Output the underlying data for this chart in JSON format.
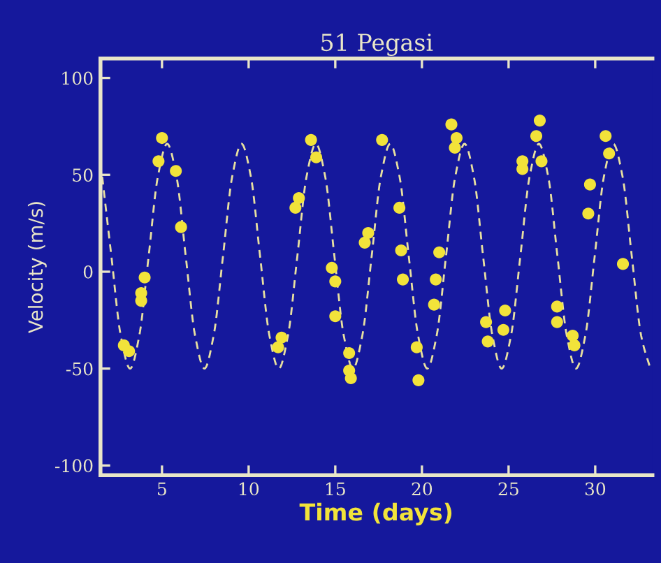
{
  "chart_data": {
    "type": "scatter",
    "title": "51 Pegasi",
    "xlabel": "Time (days)",
    "ylabel": "Velocity (m/s)",
    "xlim": [
      1.45,
      33.3
    ],
    "ylim": [
      -105,
      110
    ],
    "xticks": [
      5,
      10,
      15,
      20,
      25,
      30
    ],
    "yticks": [
      -100,
      -50,
      0,
      50,
      100
    ],
    "grid": false,
    "legend": false,
    "series": [
      {
        "color": "#f2e33a",
        "marker": "circle",
        "x": [
          2.8,
          3.1,
          3.8,
          3.8,
          4.0,
          4.8,
          5.0,
          5.8,
          6.1,
          11.7,
          11.9,
          12.7,
          12.9,
          13.6,
          13.9,
          14.8,
          15.0,
          15.0,
          15.8,
          15.8,
          15.9,
          16.7,
          16.9,
          17.7,
          18.7,
          18.8,
          18.9,
          19.7,
          19.8,
          20.7,
          20.8,
          21.0,
          21.7,
          21.9,
          22.0,
          23.7,
          23.8,
          24.7,
          24.8,
          25.8,
          25.8,
          26.6,
          26.8,
          26.9,
          27.8,
          27.8,
          28.7,
          28.8,
          29.6,
          29.7,
          30.6,
          30.8,
          31.6
        ],
        "values": [
          -38,
          -41,
          -15,
          -11,
          -3,
          57,
          69,
          52,
          23,
          -39,
          -34,
          33,
          38,
          68,
          59,
          2,
          -5,
          -23,
          -42,
          -51,
          -55,
          15,
          20,
          68,
          33,
          11,
          -4,
          -39,
          -56,
          -17,
          -4,
          10,
          76,
          64,
          69,
          -26,
          -36,
          -30,
          -20,
          53,
          57,
          70,
          78,
          57,
          -18,
          -26,
          -33,
          -38,
          30,
          45,
          70,
          61,
          4
        ]
      },
      {
        "type": "line",
        "color": "#e8e0a0",
        "line_style": "dashed",
        "marker": "none",
        "x": [
          1.55,
          2.08,
          2.62,
          3.16,
          3.69,
          4.23,
          4.76,
          5.3,
          5.84,
          6.37,
          6.91,
          7.45,
          7.98,
          8.52,
          9.05,
          9.59,
          10.13,
          10.66,
          11.2,
          11.74,
          12.27,
          12.81,
          13.34,
          13.88,
          14.42,
          14.95,
          15.49,
          16.02,
          16.56,
          17.1,
          17.63,
          18.17,
          18.71,
          19.24,
          19.78,
          20.31,
          20.85,
          21.39,
          21.92,
          22.46,
          23.0,
          23.53,
          24.07,
          24.6,
          25.14,
          25.68,
          26.21,
          26.75,
          27.29,
          27.82,
          28.36,
          28.89,
          29.43,
          29.97,
          30.5,
          31.04,
          31.58,
          32.11,
          32.65,
          33.18
        ],
        "values": [
          49,
          8,
          -33,
          -50,
          -33,
          8,
          49,
          66,
          49,
          8,
          -33,
          -50,
          -33,
          8,
          49,
          66,
          49,
          8,
          -33,
          -50,
          -33,
          8,
          49,
          66,
          49,
          8,
          -33,
          -50,
          -33,
          8,
          49,
          66,
          49,
          8,
          -33,
          -50,
          -33,
          8,
          49,
          66,
          49,
          8,
          -33,
          -50,
          -33,
          8,
          49,
          66,
          49,
          8,
          -33,
          -50,
          -33,
          8,
          49,
          66,
          49,
          8,
          -33,
          -50
        ]
      }
    ]
  }
}
